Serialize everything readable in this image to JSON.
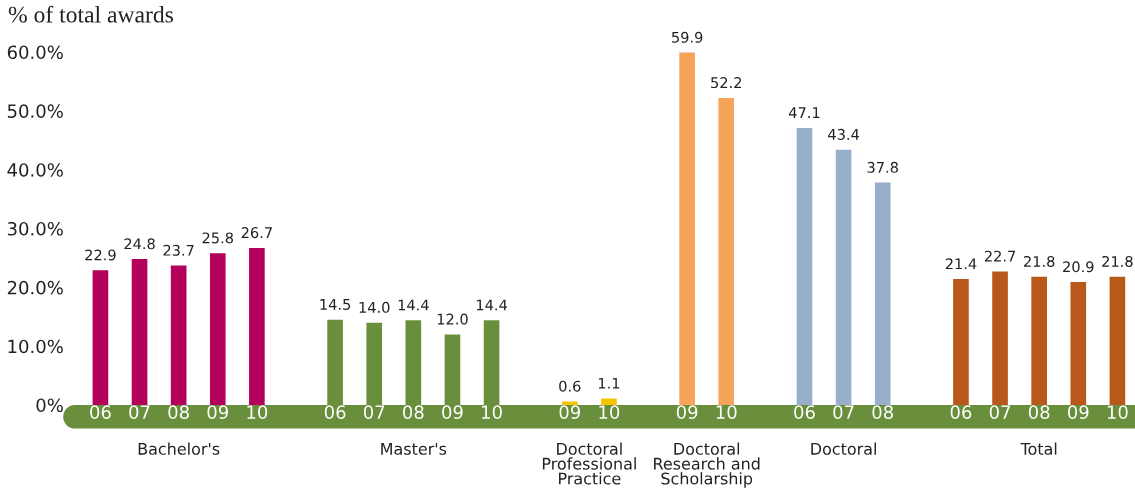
{
  "chart_data": {
    "type": "bar",
    "ylabel": "% of total awards",
    "categories": [
      "06",
      "07",
      "08",
      "09",
      "10",
      null,
      "06",
      "07",
      "08",
      "09",
      "10",
      null,
      "09",
      "10",
      null,
      "09",
      "10",
      null,
      "06",
      "07",
      "08",
      null,
      "06",
      "07",
      "08",
      "09",
      "10"
    ],
    "series": [
      {
        "name": "Bachelor's",
        "color": "#b3005a",
        "values": [
          22.9,
          24.8,
          23.7,
          25.8,
          26.7,
          null,
          null,
          null,
          null,
          null,
          null,
          null,
          null,
          null,
          null,
          null,
          null,
          null,
          null,
          null,
          null,
          null,
          null,
          null,
          null,
          null,
          null
        ],
        "value_labels": [
          "22.9",
          "24.8",
          "23.7",
          "25.8",
          "26.7",
          null,
          null,
          null,
          null,
          null,
          null,
          null,
          null,
          null,
          null,
          null,
          null,
          null,
          null,
          null,
          null,
          null,
          null,
          null,
          null,
          null,
          null
        ]
      },
      {
        "name": "Master's",
        "color": "#6a8f3c",
        "values": [
          null,
          null,
          null,
          null,
          null,
          null,
          14.5,
          14.0,
          14.4,
          12.0,
          14.4,
          null,
          null,
          null,
          null,
          null,
          null,
          null,
          null,
          null,
          null,
          null,
          null,
          null,
          null,
          null,
          null
        ],
        "value_labels": [
          null,
          null,
          null,
          null,
          null,
          null,
          "14.5",
          "14.0",
          "14.4",
          "12.0",
          "14.4",
          null,
          null,
          null,
          null,
          null,
          null,
          null,
          null,
          null,
          null,
          null,
          null,
          null,
          null,
          null,
          null
        ]
      },
      {
        "name": "Doctoral\nProfessional\nPractice",
        "color": "#f5c400",
        "values": [
          null,
          null,
          null,
          null,
          null,
          null,
          null,
          null,
          null,
          null,
          null,
          null,
          0.6,
          1.1,
          null,
          null,
          null,
          null,
          null,
          null,
          null,
          null,
          null,
          null,
          null,
          null,
          null
        ],
        "value_labels": [
          null,
          null,
          null,
          null,
          null,
          null,
          null,
          null,
          null,
          null,
          null,
          null,
          "0.6",
          "1.1",
          null,
          null,
          null,
          null,
          null,
          null,
          null,
          null,
          null,
          null,
          null,
          null,
          null
        ]
      },
      {
        "name": "Doctoral\nResearch and\nScholarship",
        "color": "#f6a45a",
        "values": [
          null,
          null,
          null,
          null,
          null,
          null,
          null,
          null,
          null,
          null,
          null,
          null,
          null,
          null,
          null,
          59.9,
          52.2,
          null,
          null,
          null,
          null,
          null,
          null,
          null,
          null,
          null,
          null
        ],
        "value_labels": [
          null,
          null,
          null,
          null,
          null,
          null,
          null,
          null,
          null,
          null,
          null,
          null,
          null,
          null,
          null,
          "59.9",
          "52.2",
          null,
          null,
          null,
          null,
          null,
          null,
          null,
          null,
          null,
          null
        ]
      },
      {
        "name": "Doctoral",
        "color": "#97afca",
        "values": [
          null,
          null,
          null,
          null,
          null,
          null,
          null,
          null,
          null,
          null,
          null,
          null,
          null,
          null,
          null,
          null,
          null,
          null,
          47.1,
          43.4,
          37.8,
          null,
          null,
          null,
          null,
          null,
          null
        ],
        "value_labels": [
          null,
          null,
          null,
          null,
          null,
          null,
          null,
          null,
          null,
          null,
          null,
          null,
          null,
          null,
          null,
          null,
          null,
          null,
          "47.1",
          "43.4",
          "37.8",
          null,
          null,
          null,
          null,
          null,
          null
        ]
      },
      {
        "name": "Total",
        "color": "#b8581b",
        "values": [
          null,
          null,
          null,
          null,
          null,
          null,
          null,
          null,
          null,
          null,
          null,
          null,
          null,
          null,
          null,
          null,
          null,
          null,
          null,
          null,
          null,
          null,
          21.4,
          22.7,
          21.8,
          20.9,
          21.8
        ],
        "value_labels": [
          null,
          null,
          null,
          null,
          null,
          null,
          null,
          null,
          null,
          null,
          null,
          null,
          null,
          null,
          null,
          null,
          null,
          null,
          null,
          null,
          null,
          null,
          "21.4",
          "22.7",
          "21.8",
          "20.9",
          "21.8"
        ]
      }
    ],
    "ylim": [
      0,
      60
    ],
    "yticks": [
      {
        "value": 0,
        "label": "0%"
      },
      {
        "value": 10,
        "label": "10.0%"
      },
      {
        "value": 20,
        "label": "20.0%"
      },
      {
        "value": 30,
        "label": "30.0%"
      },
      {
        "value": 40,
        "label": "40.0%"
      },
      {
        "value": 50,
        "label": "50.0%"
      },
      {
        "value": 60,
        "label": "60.0%"
      }
    ],
    "grid": false,
    "legend": false
  }
}
